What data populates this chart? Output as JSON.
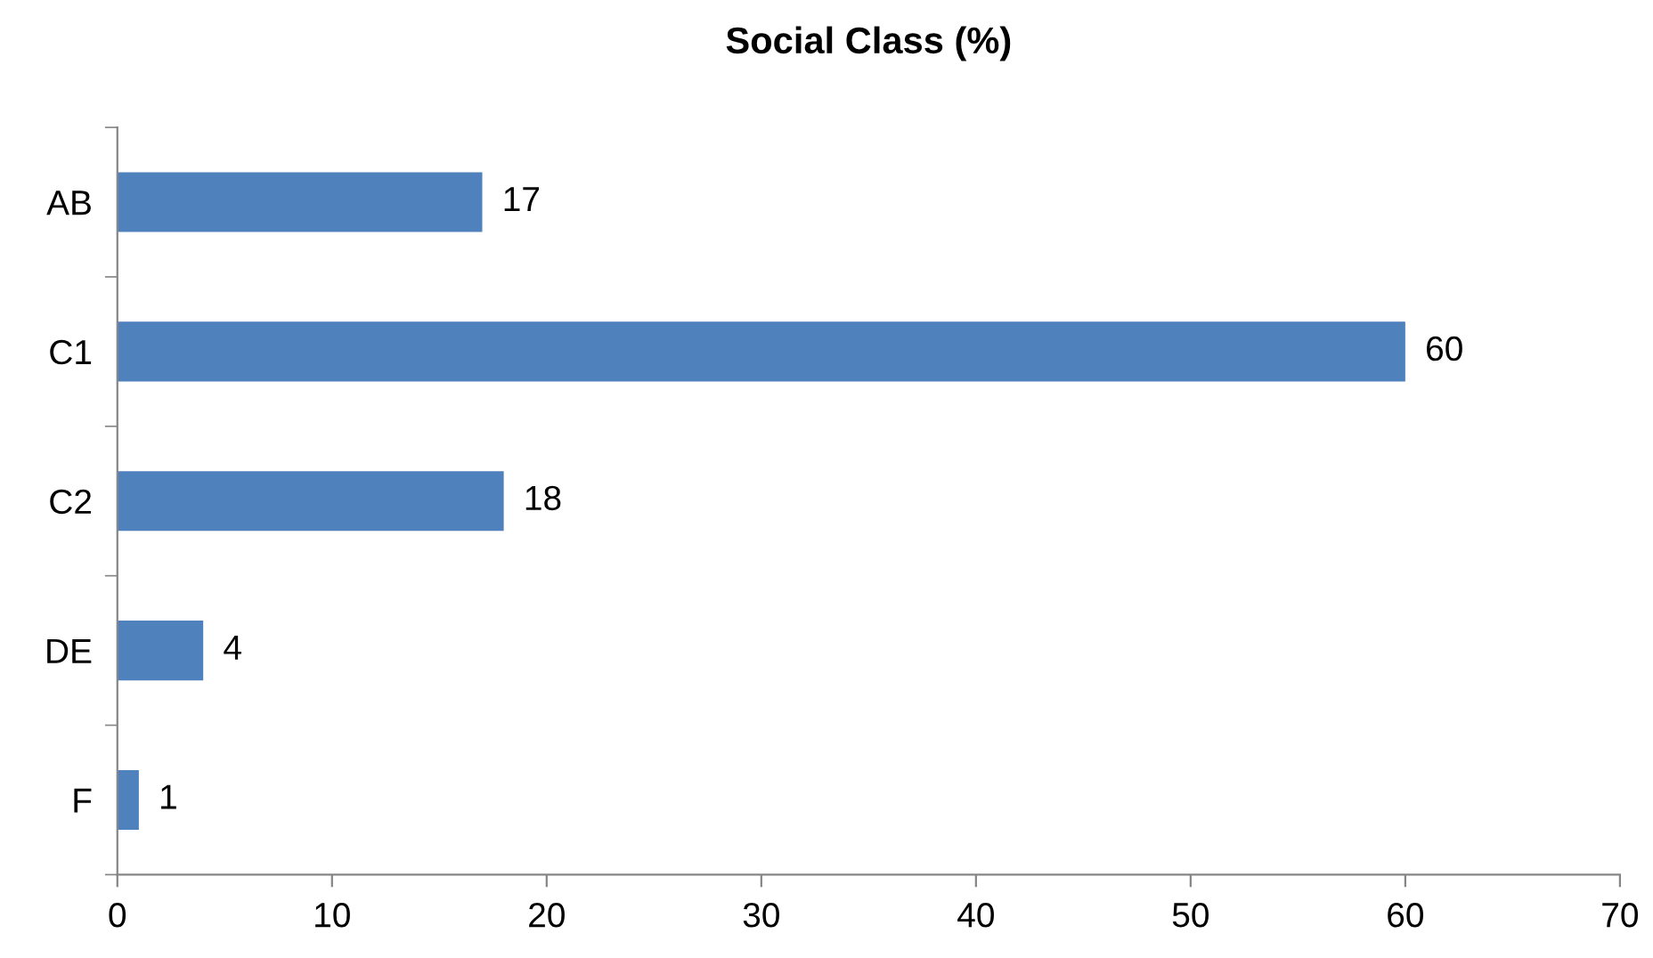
{
  "chart_data": {
    "type": "bar",
    "orientation": "horizontal",
    "title": "Social Class (%)",
    "categories": [
      "AB",
      "C1",
      "C2",
      "DE",
      "F"
    ],
    "values": [
      17,
      60,
      18,
      4,
      1
    ],
    "color": "#4f81bd",
    "xlim": [
      0,
      70
    ],
    "xticks": [
      0,
      10,
      20,
      30,
      40,
      50,
      60,
      70
    ],
    "data_labels": true,
    "grid": false,
    "legend": false
  }
}
